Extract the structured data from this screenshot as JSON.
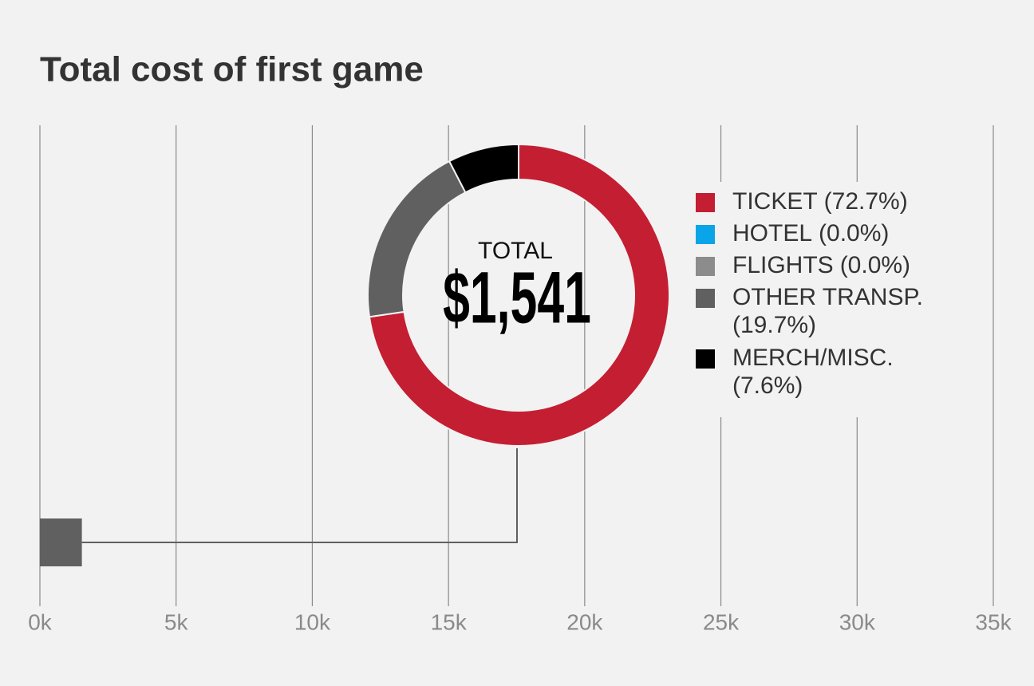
{
  "chart_data": [
    {
      "type": "bar",
      "orientation": "horizontal",
      "title": "Total cost of first game",
      "categories": [
        null
      ],
      "values": [
        1541
      ],
      "value_labels": [
        "$1,541"
      ],
      "annotation": "TOTAL",
      "color": "#606060",
      "grid": true,
      "xlim": [
        0,
        35000
      ],
      "xticks": [
        {
          "value": 0,
          "label": "0k"
        },
        {
          "value": 5000,
          "label": "5k"
        },
        {
          "value": 10000,
          "label": "10k"
        },
        {
          "value": 15000,
          "label": "15k"
        },
        {
          "value": 20000,
          "label": "20k"
        },
        {
          "value": 25000,
          "label": "25k"
        },
        {
          "value": 30000,
          "label": "30k"
        },
        {
          "value": 35000,
          "label": "35k"
        }
      ]
    },
    {
      "type": "pie",
      "donut": true,
      "legend": "right",
      "categories": [
        "TICKET",
        "HOTEL",
        "FLIGHTS",
        "OTHER TRANSP.",
        "MERCH/MISC."
      ],
      "values": [
        72.7,
        0.0,
        0.0,
        19.7,
        7.6
      ],
      "value_labels": [
        "(72.7%)",
        "(0.0%)",
        "(0.0%)",
        "(19.7%)",
        "(7.6%)"
      ],
      "colors": [
        "#c41e32",
        "#0aa5e8",
        "#8c8c8c",
        "#606060",
        "#000000"
      ]
    }
  ]
}
